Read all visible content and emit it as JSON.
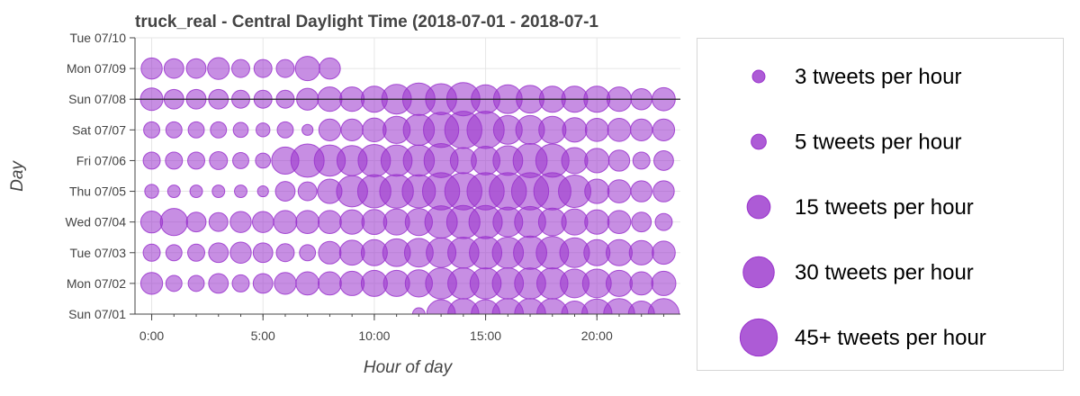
{
  "chart_data": {
    "type": "scatter",
    "title": "truck_real - Central Daylight Time (2018-07-01 - 2018-07-1",
    "xlabel": "Hour of day",
    "ylabel": "Day",
    "xlim": [
      -0.75,
      23.75
    ],
    "x_ticks": [
      {
        "value": 0,
        "label": "0:00"
      },
      {
        "value": 5,
        "label": "5:00"
      },
      {
        "value": 10,
        "label": "10:00"
      },
      {
        "value": 15,
        "label": "15:00"
      },
      {
        "value": 20,
        "label": "20:00"
      }
    ],
    "days": [
      "Sun 07/01",
      "Mon 07/02",
      "Tue 07/03",
      "Wed 07/04",
      "Thu 07/05",
      "Fri 07/06",
      "Sat 07/07",
      "Sun 07/08",
      "Mon 07/09",
      "Tue 07/10"
    ],
    "hours": [
      0,
      1,
      2,
      3,
      4,
      5,
      6,
      7,
      8,
      9,
      10,
      11,
      12,
      13,
      14,
      15,
      16,
      17,
      18,
      19,
      20,
      21,
      22,
      23
    ],
    "tweets_per_hour": [
      [
        null,
        null,
        null,
        null,
        null,
        null,
        null,
        null,
        null,
        null,
        null,
        null,
        3,
        25,
        30,
        25,
        30,
        30,
        30,
        20,
        28,
        30,
        20,
        30
      ],
      [
        13,
        6,
        6,
        10,
        7,
        10,
        13,
        15,
        15,
        17,
        20,
        20,
        22,
        30,
        30,
        30,
        30,
        30,
        30,
        25,
        25,
        20,
        15,
        17
      ],
      [
        7,
        6,
        7,
        10,
        12,
        10,
        8,
        6,
        14,
        18,
        20,
        23,
        25,
        27,
        30,
        33,
        30,
        35,
        33,
        27,
        20,
        20,
        17,
        15
      ],
      [
        13,
        22,
        10,
        9,
        12,
        12,
        15,
        15,
        15,
        17,
        18,
        20,
        22,
        33,
        35,
        35,
        27,
        30,
        23,
        20,
        17,
        15,
        10,
        7
      ],
      [
        4,
        3,
        3,
        3,
        3,
        2,
        10,
        9,
        17,
        30,
        35,
        36,
        35,
        45,
        45,
        45,
        45,
        45,
        45,
        33,
        17,
        15,
        12,
        12
      ],
      [
        7,
        7,
        7,
        8,
        6,
        5,
        22,
        35,
        30,
        28,
        33,
        30,
        30,
        37,
        20,
        25,
        27,
        37,
        35,
        20,
        17,
        12,
        7,
        10
      ],
      [
        6,
        6,
        6,
        6,
        5,
        4,
        6,
        2,
        13,
        13,
        16,
        22,
        30,
        40,
        45,
        45,
        25,
        25,
        22,
        17,
        15,
        15,
        13,
        13
      ],
      [
        14,
        10,
        10,
        10,
        8,
        8,
        8,
        13,
        17,
        17,
        20,
        27,
        33,
        30,
        35,
        25,
        25,
        23,
        20,
        20,
        20,
        17,
        12,
        15
      ],
      [
        12,
        10,
        10,
        13,
        8,
        8,
        8,
        17,
        12,
        null,
        null,
        null,
        null,
        null,
        null,
        null,
        null,
        null,
        null,
        null,
        null,
        null,
        null,
        null
      ],
      [
        null,
        null,
        null,
        null,
        null,
        null,
        null,
        null,
        null,
        null,
        null,
        null,
        null,
        null,
        null,
        null,
        null,
        null,
        null,
        null,
        null,
        null,
        null,
        null
      ]
    ],
    "dot_color": "#9932cc",
    "grid": true,
    "legend_position": "right",
    "legend": [
      {
        "count": 3,
        "label": "3 tweets per hour"
      },
      {
        "count": 5,
        "label": "5 tweets per hour"
      },
      {
        "count": 15,
        "label": "15 tweets per hour"
      },
      {
        "count": 30,
        "label": "30 tweets per hour"
      },
      {
        "count": 45,
        "label": "45+ tweets per hour"
      }
    ]
  }
}
